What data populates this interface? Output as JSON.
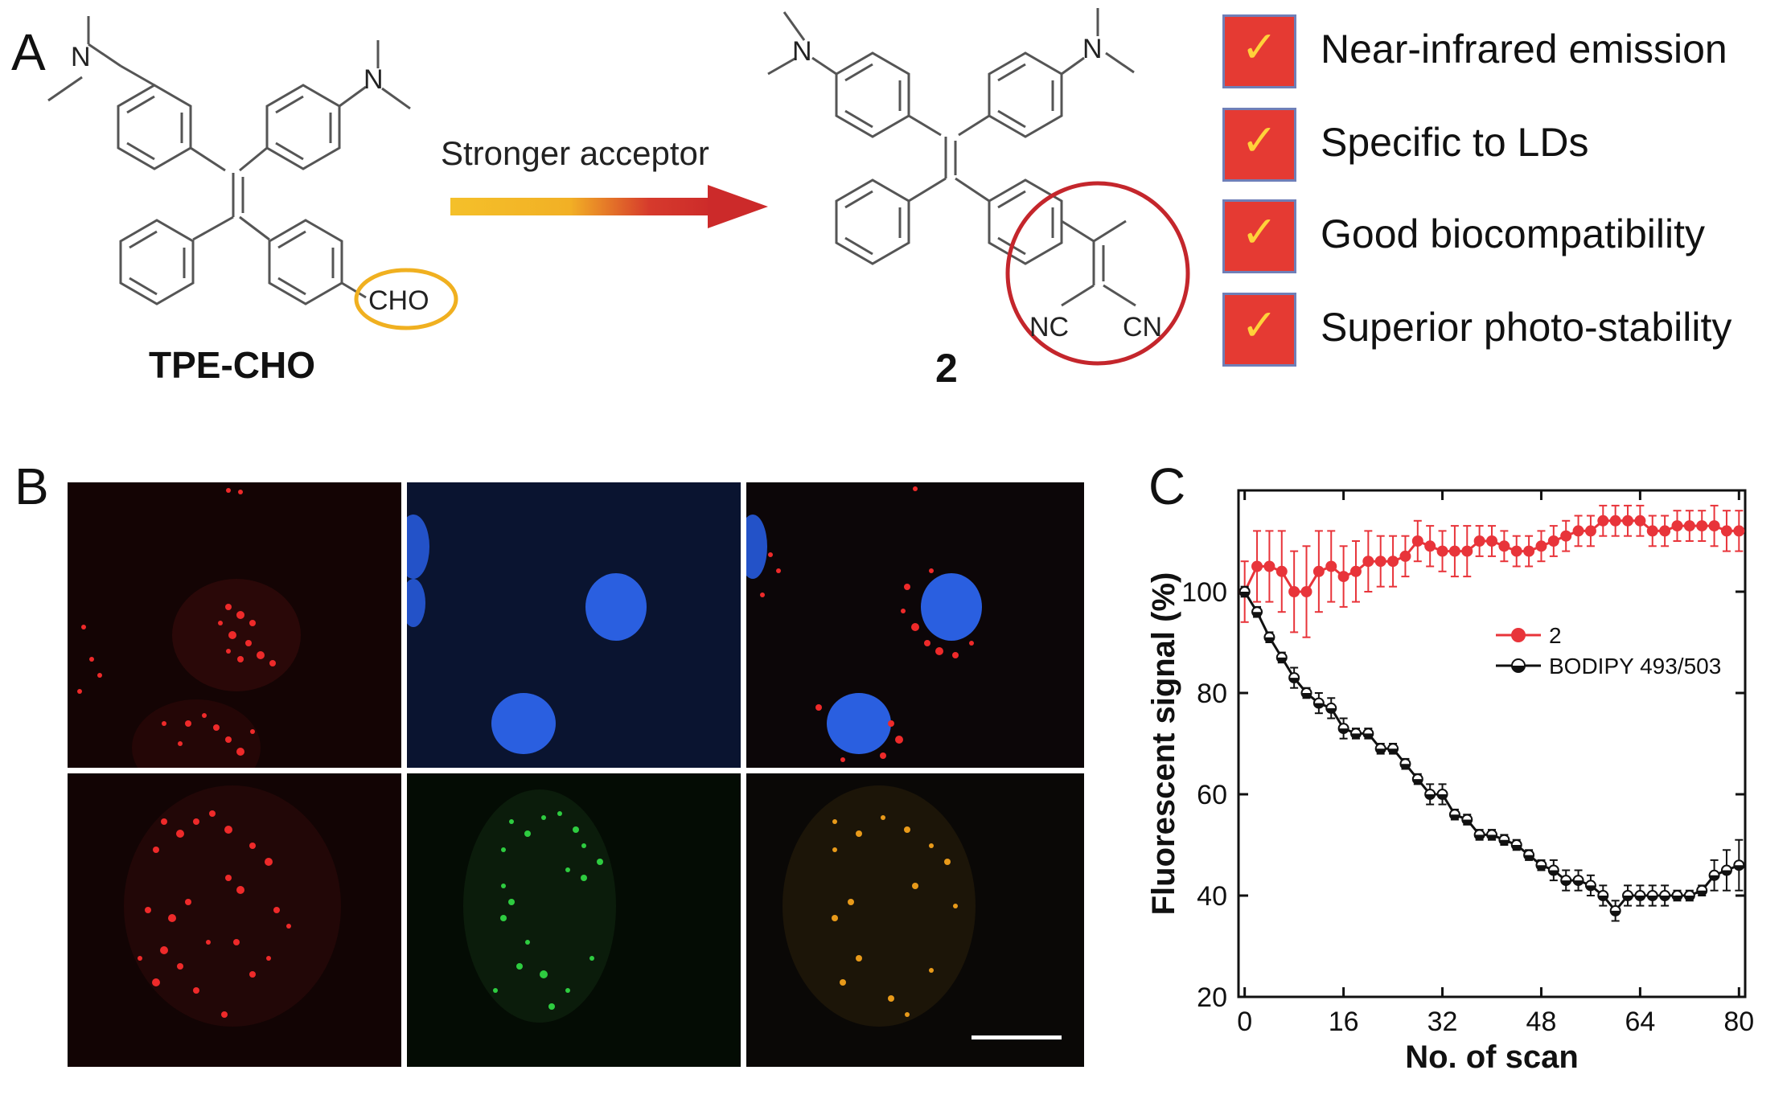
{
  "panelA": {
    "letter": "A",
    "reactant_label": "TPE-CHO",
    "reactant_group": "CHO",
    "reactant_amines": [
      "N",
      "N"
    ],
    "arrow_label": "Stronger acceptor",
    "product_label": "2",
    "product_amines": [
      "N",
      "N"
    ],
    "product_groups": [
      "NC",
      "CN"
    ],
    "features": [
      {
        "check": "✓",
        "text": "Near-infrared emission"
      },
      {
        "check": "✓",
        "text": "Specific to LDs"
      },
      {
        "check": "✓",
        "text": "Good biocompatibility"
      },
      {
        "check": "✓",
        "text": "Superior photo-stability"
      }
    ],
    "colors": {
      "check_box": "#e53a33",
      "check_mark": "#ffd23a",
      "circle": "#c4262c",
      "oval": "#f0b020",
      "arrow_start": "#f4c02a",
      "arrow_end": "#cc2a2a"
    }
  },
  "panelB": {
    "letter": "B",
    "images": [
      {
        "row": 1,
        "col": 1,
        "channel": "red"
      },
      {
        "row": 1,
        "col": 2,
        "channel": "blue"
      },
      {
        "row": 1,
        "col": 3,
        "channel": "merge-red-blue"
      },
      {
        "row": 2,
        "col": 1,
        "channel": "red"
      },
      {
        "row": 2,
        "col": 2,
        "channel": "green"
      },
      {
        "row": 2,
        "col": 3,
        "channel": "merge-orange"
      }
    ]
  },
  "panelC": {
    "letter": "C"
  },
  "chart_data": {
    "type": "line",
    "xlabel": "No. of scan",
    "ylabel": "Fluorescent signal (%)",
    "xlim": [
      -1,
      81
    ],
    "ylim": [
      20,
      120
    ],
    "xticks": [
      0,
      16,
      32,
      48,
      64,
      80
    ],
    "yticks": [
      20,
      40,
      60,
      80,
      100
    ],
    "legend_position": "right-middle",
    "series": [
      {
        "name": "2",
        "color": "#e8343a",
        "marker": "filled-circle",
        "x": [
          0,
          2,
          4,
          6,
          8,
          10,
          12,
          14,
          16,
          18,
          20,
          22,
          24,
          26,
          28,
          30,
          32,
          34,
          36,
          38,
          40,
          42,
          44,
          46,
          48,
          50,
          52,
          54,
          56,
          58,
          60,
          62,
          64,
          66,
          68,
          70,
          72,
          74,
          76,
          78,
          80
        ],
        "y": [
          100,
          105,
          105,
          104,
          100,
          100,
          104,
          105,
          103,
          104,
          106,
          106,
          106,
          107,
          110,
          109,
          108,
          108,
          108,
          110,
          110,
          109,
          108,
          108,
          109,
          110,
          111,
          112,
          112,
          114,
          114,
          114,
          114,
          112,
          112,
          113,
          113,
          113,
          113,
          112,
          112
        ],
        "err": [
          6,
          7,
          7,
          8,
          8,
          9,
          8,
          7,
          6,
          6,
          6,
          5,
          5,
          4,
          4,
          4,
          4,
          5,
          5,
          3,
          3,
          3,
          3,
          3,
          3,
          3,
          3,
          3,
          3,
          3,
          3,
          3,
          3,
          3,
          3,
          3,
          3,
          3,
          4,
          4,
          4
        ]
      },
      {
        "name": "BODIPY 493/503",
        "color": "#111111",
        "marker": "half-filled-circle",
        "x": [
          0,
          2,
          4,
          6,
          8,
          10,
          12,
          14,
          16,
          18,
          20,
          22,
          24,
          26,
          28,
          30,
          32,
          34,
          36,
          38,
          40,
          42,
          44,
          46,
          48,
          50,
          52,
          54,
          56,
          58,
          60,
          62,
          64,
          66,
          68,
          70,
          72,
          74,
          76,
          78,
          80
        ],
        "y": [
          100,
          96,
          91,
          87,
          83,
          80,
          78,
          77,
          73,
          72,
          72,
          69,
          69,
          66,
          63,
          60,
          60,
          56,
          55,
          52,
          52,
          51,
          50,
          48,
          46,
          45,
          43,
          43,
          42,
          40,
          37,
          40,
          40,
          40,
          40,
          40,
          40,
          41,
          44,
          45,
          46
        ],
        "err": [
          1,
          1,
          1,
          1,
          2,
          1,
          2,
          2,
          2,
          1,
          1,
          1,
          1,
          1,
          1,
          2,
          2,
          1,
          1,
          1,
          1,
          1,
          1,
          1,
          1,
          2,
          2,
          2,
          2,
          2,
          2,
          2,
          2,
          2,
          2,
          1,
          1,
          1,
          3,
          4,
          5
        ]
      }
    ]
  }
}
